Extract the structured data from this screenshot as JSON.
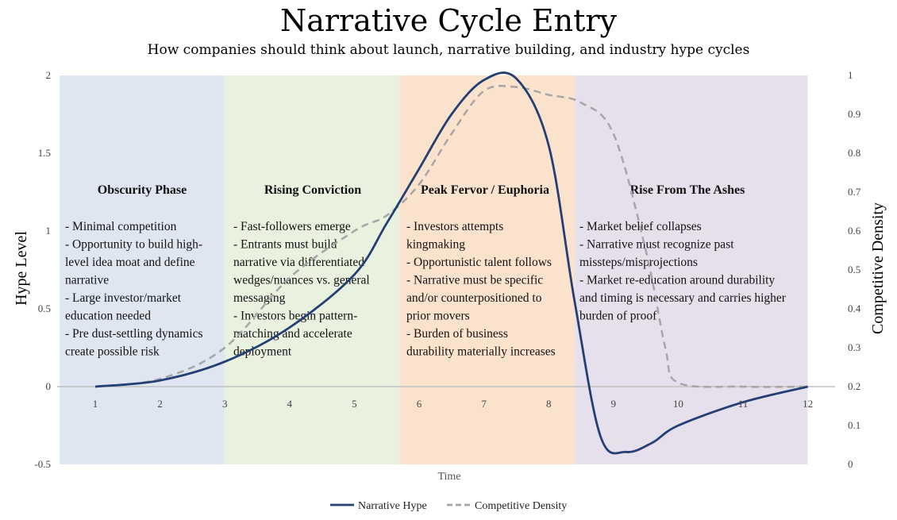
{
  "title": "Narrative Cycle Entry",
  "subtitle": "How companies should think about launch, narrative building, and industry hype cycles",
  "chart_data": {
    "type": "line",
    "xlabel": "Time",
    "ylabel_left": "Hype Level",
    "ylabel_right": "Competitive Density",
    "xlim": [
      0.5,
      12.5
    ],
    "ylim_left": [
      -0.5,
      2
    ],
    "ylim_right": [
      0,
      1
    ],
    "x_ticks": [
      "1",
      "2",
      "3",
      "4",
      "5",
      "6",
      "7",
      "8",
      "9",
      "10",
      "11",
      "12"
    ],
    "y_left_ticks": [
      "-0.5",
      "0",
      "0.5",
      "1",
      "1.5",
      "2"
    ],
    "y_right_ticks": [
      "0",
      "0.1",
      "0.2",
      "0.3",
      "0.4",
      "0.5",
      "0.6",
      "0.7",
      "0.8",
      "0.9",
      "1"
    ],
    "phases": [
      {
        "title": "Obscurity Phase",
        "x_range": [
          0.45,
          3.0
        ],
        "color": "#dfe6f1",
        "lines": [
          "- Minimal competition",
          "- Opportunity to build high-",
          "level idea moat and define",
          "narrative",
          "- Large investor/market",
          "education needed",
          "- Pre dust-settling dynamics",
          "create possible risk"
        ]
      },
      {
        "title": "Rising Conviction",
        "x_range": [
          3.0,
          5.7
        ],
        "color": "#e9f1df",
        "lines": [
          "- Fast-followers emerge",
          "- Entrants must build",
          "narrative via differentiated",
          "wedges/nuances vs. general",
          "messaging",
          "- Investors begin pattern-",
          "matching and accelerate",
          "deployment"
        ]
      },
      {
        "title": "Peak Fervor / Euphoria",
        "x_range": [
          5.7,
          8.4
        ],
        "color": "#fbe2cc",
        "lines": [
          "- Investors attempts",
          "kingmaking",
          "- Opportunistic talent follows",
          "- Narrative must be specific",
          "and/or counterpositioned to",
          "prior movers",
          "- Burden of business",
          "durability materially increases"
        ]
      },
      {
        "title": "Rise From The Ashes",
        "x_range": [
          8.4,
          12.0
        ],
        "color": "#e6e0ec",
        "lines": [
          "- Market belief collapses",
          "- Narrative must recognize past",
          "missteps/misprojections",
          "- Market re-education around durability",
          "and timing is necessary and carries higher",
          "burden of proof"
        ]
      }
    ],
    "series": [
      {
        "name": "Narrative Hype",
        "axis": "left",
        "color": "#233f74",
        "style": "solid",
        "x": [
          1,
          2,
          3,
          4,
          5,
          5.5,
          6,
          6.5,
          7,
          7.5,
          8,
          8.4,
          8.8,
          9.2,
          9.6,
          10,
          11,
          12
        ],
        "y": [
          0,
          0.04,
          0.16,
          0.38,
          0.72,
          1.05,
          1.4,
          1.75,
          1.97,
          1.98,
          1.55,
          0.55,
          -0.32,
          -0.42,
          -0.36,
          -0.25,
          -0.1,
          0
        ]
      },
      {
        "name": "Competitive Density",
        "axis": "right",
        "color": "#a6a6a6",
        "style": "dashed",
        "x": [
          1,
          2,
          3,
          4,
          5,
          5.5,
          6,
          6.5,
          7,
          7.5,
          8,
          8.5,
          9,
          9.5,
          9.8,
          10,
          11,
          12
        ],
        "y": [
          0.2,
          0.22,
          0.3,
          0.48,
          0.6,
          0.64,
          0.72,
          0.85,
          0.96,
          0.97,
          0.95,
          0.93,
          0.85,
          0.55,
          0.3,
          0.21,
          0.2,
          0.2
        ]
      }
    ],
    "legend_position": "bottom-center",
    "grid": false
  }
}
